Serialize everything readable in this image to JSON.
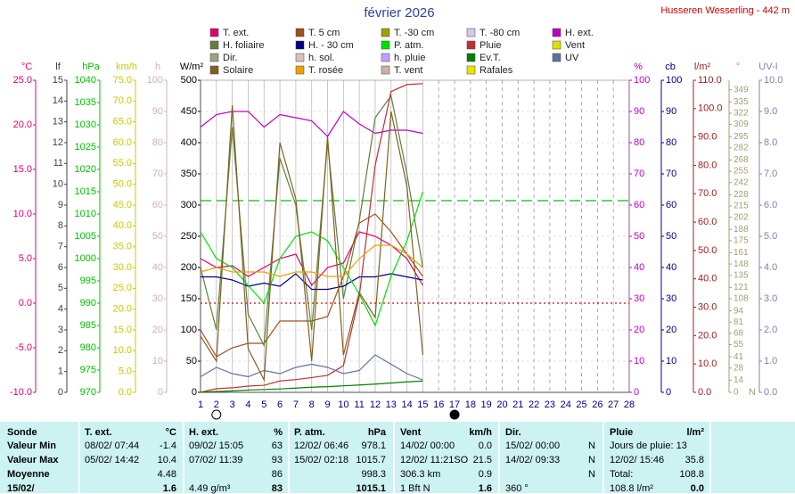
{
  "chart_data": {
    "type": "line",
    "title": "février 2026",
    "station": "Husseren Wesserling - 442 m",
    "x": [
      1,
      2,
      3,
      4,
      5,
      6,
      7,
      8,
      9,
      10,
      11,
      12,
      13,
      14,
      15
    ],
    "xlim": [
      1,
      28
    ],
    "xticks": [
      1,
      2,
      3,
      4,
      5,
      6,
      7,
      8,
      9,
      10,
      11,
      12,
      13,
      14,
      15,
      16,
      17,
      18,
      19,
      20,
      21,
      22,
      23,
      24,
      25,
      26,
      27,
      28
    ],
    "grid": true,
    "grid_axis": 5,
    "axes": [
      {
        "label": "°C",
        "color": "#e0006f",
        "side": "left",
        "lim": [
          -10,
          25
        ],
        "ticks": [
          {
            "value": -10,
            "label": "-10.0"
          },
          {
            "value": -5,
            "label": "-5.0"
          },
          {
            "value": 0,
            "label": "0.0"
          },
          {
            "value": 5,
            "label": "5.0"
          },
          {
            "value": 10,
            "label": "10.0"
          },
          {
            "value": 15,
            "label": "15.0"
          },
          {
            "value": 20,
            "label": "20.0"
          },
          {
            "value": 25,
            "label": "25.0"
          }
        ]
      },
      {
        "label": "lf",
        "color": "#404040",
        "side": "left",
        "lim": [
          0,
          15
        ],
        "ticks": [
          0,
          1,
          2,
          3,
          4,
          5,
          6,
          7,
          8,
          9,
          10,
          11,
          12,
          13,
          14,
          15
        ]
      },
      {
        "label": "hPa",
        "color": "#00c000",
        "side": "left",
        "lim": [
          970,
          1040
        ],
        "ticks": [
          970,
          975,
          980,
          985,
          990,
          995,
          1000,
          1005,
          1010,
          1015,
          1020,
          1025,
          1030,
          1035,
          1040
        ]
      },
      {
        "label": "km/h",
        "color": "#c8c800",
        "side": "left",
        "lim": [
          0,
          75
        ],
        "ticks": [
          {
            "value": 0,
            "label": "0.0"
          },
          {
            "value": 5,
            "label": "5.0"
          },
          {
            "value": 10,
            "label": "10.0"
          },
          {
            "value": 15,
            "label": "15.0"
          },
          {
            "value": 20,
            "label": "20.0"
          },
          {
            "value": 25,
            "label": "25.0"
          },
          {
            "value": 30,
            "label": "30.0"
          },
          {
            "value": 35,
            "label": "35.0"
          },
          {
            "value": 40,
            "label": "40.0"
          },
          {
            "value": 45,
            "label": "45.0"
          },
          {
            "value": 50,
            "label": "50.0"
          },
          {
            "value": 55,
            "label": "55.0"
          },
          {
            "value": 60,
            "label": "60.0"
          },
          {
            "value": 65,
            "label": "65.0"
          },
          {
            "value": 70,
            "label": "70.0"
          },
          {
            "value": 75,
            "label": "75.0"
          }
        ]
      },
      {
        "label": "h",
        "color": "#d0b0b0",
        "side": "left",
        "lim": [
          0,
          100
        ],
        "ticks": [
          0,
          10,
          20,
          30,
          40,
          50,
          60,
          70,
          80,
          90,
          100
        ]
      },
      {
        "label": "W/m²",
        "color": "#000000",
        "side": "left",
        "lim": [
          0,
          500
        ],
        "ticks": [
          0,
          50,
          100,
          150,
          200,
          250,
          300,
          350,
          400,
          450,
          500
        ]
      },
      {
        "label": "%",
        "color": "#c000c0",
        "side": "right",
        "lim": [
          0,
          100
        ],
        "ticks": [
          0,
          10,
          20,
          30,
          40,
          50,
          60,
          70,
          80,
          90,
          100
        ]
      },
      {
        "label": "cb",
        "color": "#000080",
        "side": "right",
        "lim": [
          0,
          100
        ],
        "ticks": [
          0,
          10,
          20,
          30,
          40,
          50,
          60,
          70,
          80,
          90,
          100
        ]
      },
      {
        "label": "l/m²",
        "color": "#a02020",
        "side": "right",
        "lim": [
          0,
          110
        ],
        "ticks": [
          {
            "value": 0,
            "label": "0.0"
          },
          {
            "value": 10,
            "label": "10.0"
          },
          {
            "value": 20,
            "label": "20.0"
          },
          {
            "value": 30,
            "label": "30.0"
          },
          {
            "value": 40,
            "label": "40.0"
          },
          {
            "value": 50,
            "label": "50.0"
          },
          {
            "value": 60,
            "label": "60.0"
          },
          {
            "value": 70,
            "label": "70.0"
          },
          {
            "value": 80,
            "label": "80.0"
          },
          {
            "value": 90,
            "label": "90.0"
          },
          {
            "value": 100,
            "label": "100.0"
          },
          {
            "value": 110,
            "label": "110.0"
          }
        ]
      },
      {
        "label": "°",
        "color": "#a0a070",
        "side": "right",
        "lim": [
          0,
          360
        ],
        "north_label": "N",
        "ticks": [
          0,
          14,
          28,
          41,
          55,
          68,
          81,
          94,
          108,
          121,
          135,
          148,
          161,
          175,
          188,
          202,
          215,
          228,
          242,
          255,
          268,
          282,
          295,
          309,
          322,
          335,
          349
        ]
      },
      {
        "label": "UV-I",
        "color": "#8080b0",
        "side": "right",
        "lim": [
          0,
          10
        ],
        "ticks": [
          {
            "value": 0,
            "label": "0.0"
          },
          {
            "value": 1,
            "label": "1.0"
          },
          {
            "value": 2,
            "label": "2.0"
          },
          {
            "value": 3,
            "label": "3.0"
          },
          {
            "value": 4,
            "label": "4.0"
          },
          {
            "value": 5,
            "label": "5.0"
          },
          {
            "value": 6,
            "label": "6.0"
          },
          {
            "value": 7,
            "label": "7.0"
          },
          {
            "value": 8,
            "label": "8.0"
          },
          {
            "value": 9,
            "label": "9.0"
          },
          {
            "value": 10,
            "label": "10.0"
          }
        ]
      }
    ],
    "ref_lines": [
      {
        "axis": 2,
        "value": 1013,
        "color": "#00c000"
      },
      {
        "axis": 0,
        "value": 0,
        "color": "#e00000"
      }
    ],
    "moon_phases": [
      {
        "x": 2,
        "filled": false
      },
      {
        "x": 17,
        "filled": true
      }
    ],
    "series": [
      {
        "name": "T. ext.",
        "color": "#e0006f",
        "axis": 0,
        "values": [
          5.0,
          4.0,
          4.2,
          3.0,
          4.0,
          5.0,
          5.5,
          2.0,
          4.0,
          4.5,
          8.0,
          7.5,
          6.5,
          5.0,
          2.0
        ]
      },
      {
        "name": "T. 5 cm",
        "color": "#a05020",
        "axis": 0,
        "values": [
          -3.0,
          -6.0,
          -5.0,
          -4.5,
          -4.5,
          -2.0,
          -2.0,
          -2.0,
          -1.5,
          3.0,
          9.0,
          10.0,
          8.0,
          5.5,
          3.0
        ]
      },
      {
        "name": "T. -30 cm",
        "color": "#a0a000"
      },
      {
        "name": "T. -80 cm",
        "color": "#d8c8e8"
      },
      {
        "name": "H. ext.",
        "color": "#c000c0",
        "axis": 6,
        "values": [
          85,
          89,
          90,
          90,
          85,
          89,
          88,
          87,
          82,
          90,
          86,
          83,
          84,
          84,
          83
        ]
      },
      {
        "name": "H. foliaire",
        "color": "#608040",
        "axis": 6,
        "values": [
          40,
          20,
          85,
          25,
          15,
          75,
          60,
          20,
          80,
          30,
          55,
          88,
          95,
          70,
          40
        ]
      },
      {
        "name": "H. - 30 cm",
        "color": "#000080",
        "axis": 7,
        "values": [
          37,
          37,
          36,
          34,
          35,
          34,
          38,
          33,
          33,
          34,
          37,
          37,
          38,
          37,
          36
        ]
      },
      {
        "name": "P. atm.",
        "color": "#00e000",
        "axis": 2,
        "values": [
          1006,
          1000,
          998,
          994,
          990,
          1000,
          1005,
          1006,
          1004,
          998,
          992,
          985,
          996,
          1004,
          1015
        ]
      },
      {
        "name": "Pluie",
        "color": "#c03030",
        "axis": 8,
        "values": [
          0.0,
          1.3,
          1.6,
          2.2,
          2.5,
          4.0,
          4.5,
          5.2,
          6.0,
          9.4,
          34.0,
          80.0,
          106.0,
          108.5,
          108.8
        ]
      },
      {
        "name": "Vent",
        "color": "#e0e000"
      },
      {
        "name": "Dir.",
        "color": "#a0a080"
      },
      {
        "name": "h. sol.",
        "color": "#d8c0c0"
      },
      {
        "name": "h. pluie",
        "color": "#c0a0ff"
      },
      {
        "name": "Ev.T.",
        "color": "#008000",
        "axis": 8,
        "values": [
          0.1,
          0.3,
          0.5,
          0.8,
          1.0,
          1.2,
          1.5,
          1.8,
          2.0,
          2.3,
          2.6,
          2.9,
          3.3,
          3.7,
          4.0
        ]
      },
      {
        "name": "UV",
        "color": "#6070a0",
        "axis": 10,
        "values": [
          0.5,
          0.8,
          0.6,
          0.5,
          0.7,
          0.6,
          0.8,
          0.9,
          0.8,
          0.6,
          0.7,
          1.2,
          0.9,
          0.6,
          0.4
        ]
      },
      {
        "name": "Solaire",
        "color": "#806020",
        "axis": 5,
        "values": [
          90,
          50,
          460,
          70,
          20,
          400,
          310,
          50,
          410,
          60,
          160,
          120,
          450,
          330,
          60
        ]
      },
      {
        "name": "T. rosée",
        "color": "#f0a000",
        "axis": 0,
        "values": [
          3.5,
          4.0,
          3.5,
          3.5,
          3.5,
          3.0,
          3.5,
          3.5,
          3.0,
          3.0,
          5.0,
          6.5,
          6.5,
          5.5,
          4.0
        ]
      },
      {
        "name": "T. vent",
        "color": "#d0b0a0"
      },
      {
        "name": "Rafales",
        "color": "#f0e000"
      }
    ]
  },
  "table": {
    "header": [
      "Sonde",
      "T. ext.",
      "°C",
      "H. ext.",
      "%",
      "P. atm.",
      "hPa",
      "Vent",
      "km/h",
      "Dir.",
      null,
      "Pluie",
      "l/m²"
    ],
    "rows": [
      [
        "Valeur Min",
        "08/02/ 07:44",
        "-1.4",
        "09/02/ 15:05",
        "63",
        "12/02/ 06:46",
        "978.1",
        "14/02/ 00:00",
        "0.0",
        "15/02/ 00:00",
        "N",
        "Jours de pluie: 13",
        null
      ],
      [
        "Valeur Max",
        "05/02/ 14:42",
        "10.4",
        "07/02/ 11:39",
        "93",
        "15/02/ 02:18",
        "1015.7",
        "12/02/ 11:21SO",
        "21.5",
        "14/02/ 09:33",
        "N",
        "12/02/ 15:46",
        "35.8"
      ],
      [
        "Moyenne",
        null,
        "4.48",
        null,
        "86",
        null,
        "998.3",
        "306.3 km",
        "0.9",
        null,
        "N",
        "Total:",
        "108.8"
      ],
      [
        "15/02/",
        null,
        "1.6",
        "4.49 g/m³",
        "83",
        null,
        "1015.1",
        "1 Bft N",
        "1.6",
        "360 °",
        null,
        "108.8 l/m²",
        "0.0"
      ]
    ]
  }
}
